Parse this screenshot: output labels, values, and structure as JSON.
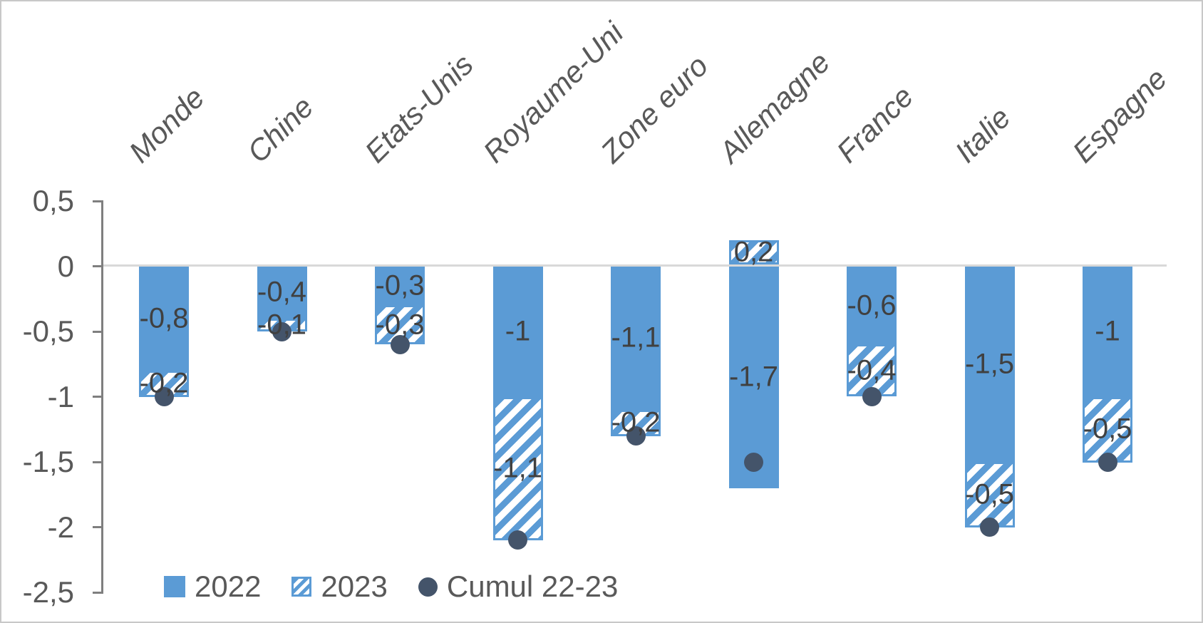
{
  "chart_data": {
    "type": "bar",
    "subtype": "stacked-bars-with-cumulative-dot-markers",
    "categories": [
      "Monde",
      "Chine",
      "Etats-Unis",
      "Royaume-Uni",
      "Zone euro",
      "Allemagne",
      "France",
      "Italie",
      "Espagne"
    ],
    "series": [
      {
        "name": "2022",
        "style": "solid-bar",
        "values": [
          -0.8,
          -0.4,
          -0.3,
          -1,
          -1.1,
          -1.7,
          -0.6,
          -1.5,
          -1
        ],
        "labels": [
          "-0,8",
          "-0,4",
          "-0,3",
          "-1",
          "-1,1",
          "-1,7",
          "-0,6",
          "-1,5",
          "-1"
        ]
      },
      {
        "name": "2023",
        "style": "hatched-bar",
        "values": [
          -0.2,
          -0.1,
          -0.3,
          -1.1,
          -0.2,
          0.2,
          -0.4,
          -0.5,
          -0.5
        ],
        "labels": [
          "-0,2",
          "-0,1",
          "-0,3",
          "-1,1",
          "-0,2",
          "0,2",
          "-0,4",
          "-0,5",
          "-0,5"
        ]
      },
      {
        "name": "Cumul 22-23",
        "style": "dot",
        "values": [
          -1,
          -0.5,
          -0.6,
          -2.1,
          -1.3,
          -1.5,
          -1,
          -2,
          -1.5
        ]
      }
    ],
    "y_axis": {
      "min": -2.5,
      "max": 0.5,
      "tick_values": [
        0.5,
        0,
        -0.5,
        -1,
        -1.5,
        -2,
        -2.5
      ],
      "tick_labels": [
        "0,5",
        "0",
        "-0,5",
        "-1",
        "-1,5",
        "-2",
        "-2,5"
      ],
      "grid": "zero-line-only",
      "decimal_separator": ","
    },
    "x_axis": {
      "label_rotation_deg": -45,
      "label_style": "italic",
      "label_position": "top"
    },
    "legend": {
      "position": "bottom-left",
      "entries": [
        {
          "label": "2022",
          "swatch": "solid-square"
        },
        {
          "label": "2023",
          "swatch": "hatched-square"
        },
        {
          "label": "Cumul 22-23",
          "swatch": "circle"
        }
      ]
    },
    "colors": {
      "bar_blue": "#5B9BD5",
      "hatch_background": "#FFFFFF",
      "dot_navy": "#44546A",
      "data_label_text": "#404040",
      "axis_text": "#595959",
      "axis_line": "#7F7F7F",
      "zero_line": "#D9D9D9",
      "frame_border": "#C8C8C8"
    }
  }
}
